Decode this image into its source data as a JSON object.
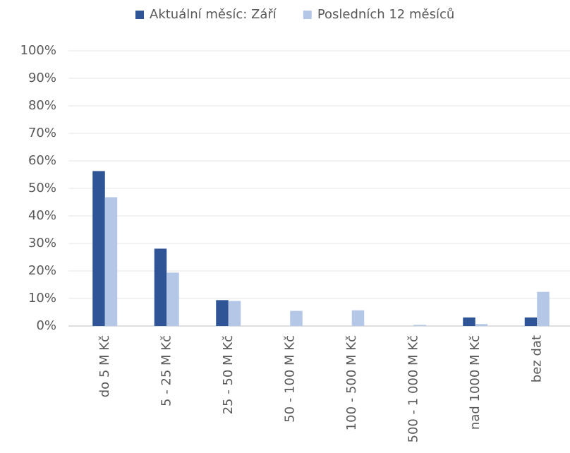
{
  "chart_data": {
    "type": "bar",
    "categories": [
      "do 5 M Kč",
      "5 - 25 M Kč",
      "25 - 50 M Kč",
      "50 - 100 M Kč",
      "100 - 500 M Kč",
      "500 - 1 000 M Kč",
      "nad 1000 M Kč",
      "bez dat"
    ],
    "series": [
      {
        "name": "Aktuální měsíc: Září",
        "color": "#2f5597",
        "values": [
          56.3,
          28.1,
          9.4,
          0,
          0,
          0,
          3.1,
          3.1
        ]
      },
      {
        "name": "Posledních 12 měsíců",
        "color": "#b4c7e7",
        "values": [
          46.8,
          19.4,
          9.1,
          5.5,
          5.7,
          0.4,
          0.7,
          12.4
        ]
      }
    ],
    "ylim": [
      0,
      100
    ],
    "yticks": [
      {
        "value": 0,
        "label": "0%"
      },
      {
        "value": 10,
        "label": "10%"
      },
      {
        "value": 20,
        "label": "20%"
      },
      {
        "value": 30,
        "label": "30%"
      },
      {
        "value": 40,
        "label": "40%"
      },
      {
        "value": 50,
        "label": "50%"
      },
      {
        "value": 60,
        "label": "60%"
      },
      {
        "value": 70,
        "label": "70%"
      },
      {
        "value": 80,
        "label": "80%"
      },
      {
        "value": 90,
        "label": "90%"
      },
      {
        "value": 100,
        "label": "100%"
      }
    ],
    "grid": true,
    "legend": "top"
  }
}
